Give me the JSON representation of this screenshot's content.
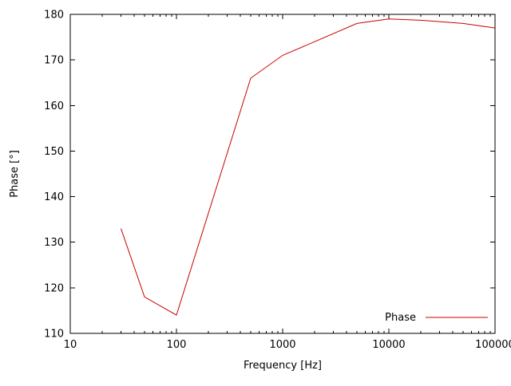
{
  "chart_data": {
    "type": "line",
    "title": "",
    "xlabel": "Frequency [Hz]",
    "ylabel": "Phase [°]",
    "xscale": "log",
    "xlim": [
      10,
      100000
    ],
    "ylim": [
      110,
      180
    ],
    "grid": false,
    "x_ticks": [
      10,
      100,
      1000,
      10000,
      100000
    ],
    "x_tick_labels": [
      "10",
      "100",
      "1000",
      "10000",
      "100000"
    ],
    "y_ticks": [
      110,
      120,
      130,
      140,
      150,
      160,
      170,
      180
    ],
    "y_tick_labels": [
      "110",
      "120",
      "130",
      "140",
      "150",
      "160",
      "170",
      "180"
    ],
    "x": [
      30,
      50,
      100,
      500,
      1000,
      2000,
      5000,
      10000,
      20000,
      50000,
      100000
    ],
    "series": [
      {
        "name": "Phase",
        "color": "#cc0000",
        "values": [
          133,
          118,
          114,
          166,
          171,
          174,
          178,
          179,
          178.7,
          178,
          177
        ]
      }
    ],
    "legend": {
      "position": "inside-bottom-right",
      "entries": [
        "Phase"
      ]
    },
    "colors": {
      "axis": "#000000",
      "background": "#ffffff"
    }
  }
}
